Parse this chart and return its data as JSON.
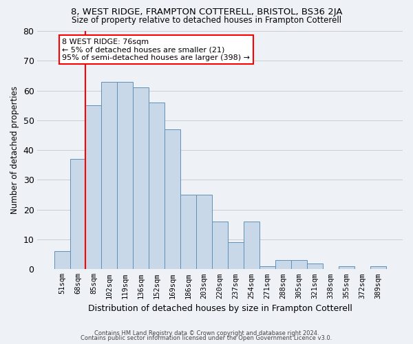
{
  "title1": "8, WEST RIDGE, FRAMPTON COTTERELL, BRISTOL, BS36 2JA",
  "title2": "Size of property relative to detached houses in Frampton Cotterell",
  "xlabel": "Distribution of detached houses by size in Frampton Cotterell",
  "ylabel": "Number of detached properties",
  "footer1": "Contains HM Land Registry data © Crown copyright and database right 2024.",
  "footer2": "Contains public sector information licensed under the Open Government Licence v3.0.",
  "categories": [
    "51sqm",
    "68sqm",
    "85sqm",
    "102sqm",
    "119sqm",
    "136sqm",
    "152sqm",
    "169sqm",
    "186sqm",
    "203sqm",
    "220sqm",
    "237sqm",
    "254sqm",
    "271sqm",
    "288sqm",
    "305sqm",
    "321sqm",
    "338sqm",
    "355sqm",
    "372sqm",
    "389sqm"
  ],
  "values": [
    6,
    37,
    55,
    63,
    63,
    61,
    56,
    47,
    25,
    25,
    16,
    9,
    16,
    1,
    3,
    3,
    2,
    0,
    1,
    0,
    1
  ],
  "bar_color": "#c8d8e8",
  "bar_edge_color": "#6090b8",
  "grid_color": "#cccccc",
  "bg_color": "#eef2f7",
  "annotation_box_line1": "8 WEST RIDGE: 76sqm",
  "annotation_box_line2": "← 5% of detached houses are smaller (21)",
  "annotation_box_line3": "95% of semi-detached houses are larger (398) →",
  "vline_color": "red",
  "annotation_box_color": "white",
  "annotation_box_edge_color": "red",
  "ylim": [
    0,
    80
  ],
  "yticks": [
    0,
    10,
    20,
    30,
    40,
    50,
    60,
    70,
    80
  ]
}
